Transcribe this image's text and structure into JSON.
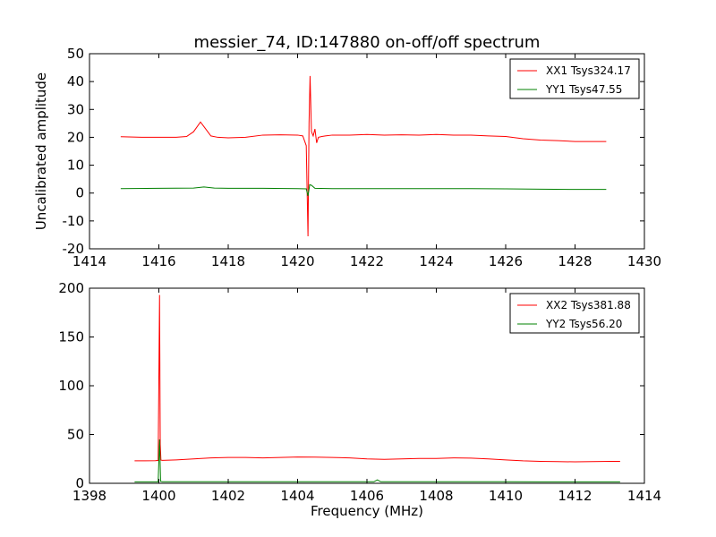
{
  "title": "messier_74, ID:147880 on-off/off spectrum",
  "colors": {
    "xx": "#ff0000",
    "yy": "#008000"
  },
  "chart_data": [
    {
      "type": "line",
      "xlabel": "",
      "ylabel": "Uncalibrated amplitude",
      "xlim": [
        1414,
        1430
      ],
      "ylim": [
        -20,
        50
      ],
      "xticks": [
        1414,
        1416,
        1418,
        1420,
        1422,
        1424,
        1426,
        1428,
        1430
      ],
      "yticks": [
        -20,
        -10,
        0,
        10,
        20,
        30,
        40,
        50
      ],
      "legend_position": "top-right",
      "series": [
        {
          "name": "XX1 Tsys324.17",
          "color": "#ff0000",
          "x": [
            1414.9,
            1415.5,
            1416.0,
            1416.5,
            1416.8,
            1417.0,
            1417.2,
            1417.35,
            1417.5,
            1417.7,
            1418.0,
            1418.5,
            1419.0,
            1419.5,
            1420.0,
            1420.15,
            1420.25,
            1420.3,
            1420.33,
            1420.36,
            1420.4,
            1420.45,
            1420.5,
            1420.55,
            1420.6,
            1420.7,
            1420.8,
            1421.0,
            1421.5,
            1422.0,
            1422.5,
            1423.0,
            1423.5,
            1424.0,
            1424.5,
            1425.0,
            1425.5,
            1426.0,
            1426.5,
            1427.0,
            1427.5,
            1428.0,
            1428.5,
            1428.9
          ],
          "y": [
            20.2,
            20.0,
            20.0,
            20.0,
            20.3,
            22.0,
            25.5,
            23.0,
            20.5,
            20.0,
            19.8,
            20.0,
            20.8,
            20.9,
            20.8,
            20.5,
            17.0,
            -15.5,
            25.0,
            42.0,
            22.0,
            20.5,
            23.0,
            18.0,
            20.0,
            20.3,
            20.5,
            20.8,
            20.8,
            21.0,
            20.8,
            20.9,
            20.8,
            21.0,
            20.8,
            20.8,
            20.5,
            20.3,
            19.5,
            19.0,
            18.8,
            18.5,
            18.5,
            18.5
          ]
        },
        {
          "name": "YY1 Tsys47.55",
          "color": "#008000",
          "x": [
            1414.9,
            1416.0,
            1417.0,
            1417.3,
            1417.6,
            1418.0,
            1419.0,
            1420.0,
            1420.25,
            1420.3,
            1420.35,
            1420.4,
            1420.5,
            1421.0,
            1422.0,
            1423.0,
            1424.0,
            1425.0,
            1426.0,
            1427.0,
            1428.0,
            1428.9
          ],
          "y": [
            1.6,
            1.7,
            1.8,
            2.2,
            1.8,
            1.7,
            1.7,
            1.6,
            1.5,
            -1.0,
            3.0,
            2.8,
            1.7,
            1.6,
            1.6,
            1.6,
            1.6,
            1.6,
            1.5,
            1.4,
            1.3,
            1.3
          ]
        }
      ]
    },
    {
      "type": "line",
      "xlabel": "Frequency (MHz)",
      "ylabel": "",
      "xlim": [
        1398,
        1414
      ],
      "ylim": [
        0,
        200
      ],
      "xticks": [
        1398,
        1400,
        1402,
        1404,
        1406,
        1408,
        1410,
        1412,
        1414
      ],
      "yticks": [
        0,
        50,
        100,
        150,
        200
      ],
      "legend_position": "top-right",
      "series": [
        {
          "name": "XX2 Tsys381.88",
          "color": "#ff0000",
          "x": [
            1399.3,
            1399.6,
            1399.9,
            1399.98,
            1400.02,
            1400.04,
            1400.06,
            1400.1,
            1400.5,
            1401.0,
            1401.5,
            1402.0,
            1402.5,
            1403.0,
            1403.5,
            1404.0,
            1404.5,
            1405.0,
            1405.5,
            1406.0,
            1406.5,
            1407.0,
            1407.5,
            1408.0,
            1408.5,
            1409.0,
            1409.5,
            1410.0,
            1410.5,
            1411.0,
            1411.5,
            1412.0,
            1412.5,
            1413.0,
            1413.3
          ],
          "y": [
            23.0,
            23.0,
            23.2,
            23.5,
            193.0,
            40.0,
            23.8,
            23.5,
            24.0,
            25.0,
            26.0,
            26.5,
            26.5,
            26.0,
            26.5,
            27.0,
            26.8,
            26.5,
            26.0,
            25.0,
            24.5,
            25.0,
            25.5,
            25.5,
            26.0,
            25.8,
            25.0,
            24.0,
            23.0,
            22.5,
            22.2,
            22.0,
            22.3,
            22.5,
            22.5
          ]
        },
        {
          "name": "YY2 Tsys56.20",
          "color": "#008000",
          "x": [
            1399.3,
            1399.8,
            1399.98,
            1400.02,
            1400.05,
            1400.1,
            1401.0,
            1402.0,
            1403.0,
            1404.0,
            1405.0,
            1406.0,
            1406.2,
            1406.3,
            1406.4,
            1407.0,
            1408.0,
            1409.0,
            1410.0,
            1411.0,
            1412.0,
            1413.3
          ],
          "y": [
            1.5,
            1.5,
            1.5,
            45.0,
            2.0,
            1.6,
            1.6,
            1.6,
            1.6,
            1.6,
            1.6,
            1.6,
            1.6,
            3.5,
            1.6,
            1.6,
            1.6,
            1.6,
            1.6,
            1.5,
            1.5,
            1.5
          ]
        }
      ]
    }
  ]
}
